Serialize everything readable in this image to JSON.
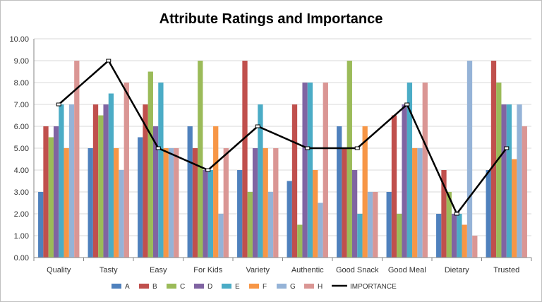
{
  "chart_data": {
    "type": "bar",
    "title": "Attribute Ratings and Importance",
    "categories": [
      "Quality",
      "Tasty",
      "Easy",
      "For Kids",
      "Variety",
      "Authentic",
      "Good Snack",
      "Good Meal",
      "Dietary",
      "Trusted"
    ],
    "ylim": [
      0,
      10
    ],
    "yticks": [
      "0.00",
      "1.00",
      "2.00",
      "3.00",
      "4.00",
      "5.00",
      "6.00",
      "7.00",
      "8.00",
      "9.00",
      "10.00"
    ],
    "grid": true,
    "legend_position": "bottom",
    "series": [
      {
        "name": "A",
        "color": "#4f81bd",
        "values": [
          3.0,
          5.0,
          5.5,
          6.0,
          4.0,
          3.5,
          6.0,
          3.0,
          2.0,
          4.0
        ]
      },
      {
        "name": "B",
        "color": "#c0504d",
        "values": [
          6.0,
          7.0,
          7.0,
          5.0,
          9.0,
          7.0,
          5.0,
          6.5,
          4.0,
          9.0
        ]
      },
      {
        "name": "C",
        "color": "#9bbb59",
        "values": [
          5.5,
          6.5,
          8.5,
          9.0,
          3.0,
          1.5,
          9.0,
          2.0,
          3.0,
          8.0
        ]
      },
      {
        "name": "D",
        "color": "#8064a2",
        "values": [
          6.0,
          7.0,
          6.0,
          4.0,
          5.0,
          8.0,
          4.0,
          7.0,
          2.0,
          7.0
        ]
      },
      {
        "name": "E",
        "color": "#4bacc6",
        "values": [
          7.0,
          7.5,
          8.0,
          4.0,
          7.0,
          8.0,
          2.0,
          8.0,
          2.0,
          7.0
        ]
      },
      {
        "name": "F",
        "color": "#f79646",
        "values": [
          5.0,
          5.0,
          5.0,
          6.0,
          5.0,
          4.0,
          6.0,
          5.0,
          1.5,
          4.5
        ]
      },
      {
        "name": "G",
        "color": "#95b3d7",
        "values": [
          7.0,
          4.0,
          5.0,
          2.0,
          3.0,
          2.5,
          3.0,
          5.0,
          9.0,
          7.0
        ]
      },
      {
        "name": "H",
        "color": "#da9694",
        "values": [
          9.0,
          8.0,
          5.0,
          5.0,
          5.0,
          8.0,
          3.0,
          8.0,
          1.0,
          6.0
        ]
      }
    ],
    "line": {
      "name": "IMPORTANCE",
      "color": "#000000",
      "values": [
        7.0,
        9.0,
        5.0,
        4.0,
        6.0,
        5.0,
        5.0,
        7.0,
        2.0,
        5.0
      ]
    }
  }
}
